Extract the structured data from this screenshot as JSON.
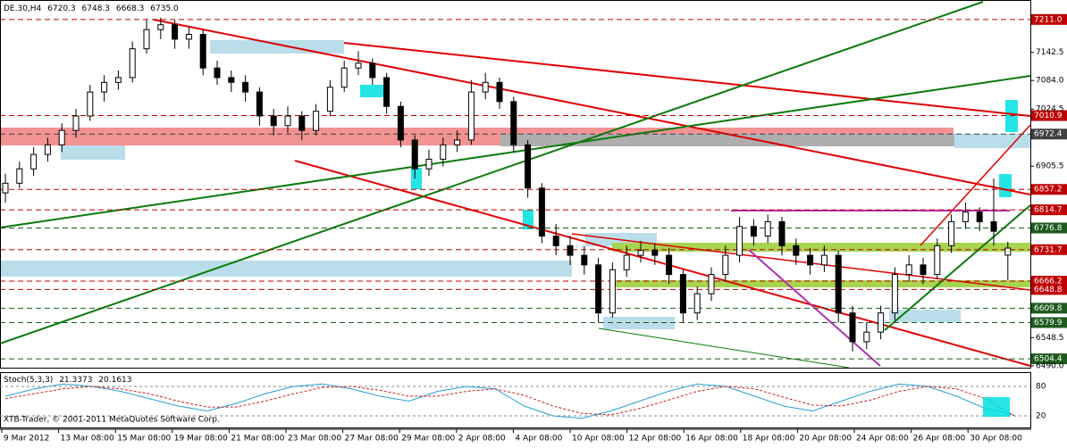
{
  "chart_data": {
    "type": "candlestick",
    "symbol": "DE.30,H4",
    "last_bar_labels": [
      "6720.3",
      "6748.3",
      "6668.3",
      "6735.0"
    ],
    "copyright": "XTB-Trader, © 2001-2011 MetaQuotes Software Corp.",
    "ylim": [
      6486,
      7246
    ],
    "yticks": [
      7142.5,
      {
        "value": 7084,
        "label": "7084.0"
      },
      7024.5,
      6905.5,
      6548.5,
      {
        "value": 6490,
        "label": "6490.0"
      }
    ],
    "x_labels": [
      "9 Mar 2012",
      "13 Mar 08:00",
      "15 Mar 08:00",
      "19 Mar 08:00",
      "21 Mar 08:00",
      "23 Mar 08:00",
      "27 Mar 08:00",
      "29 Mar 08:00",
      "2 Apr 08:00",
      "4 Apr 08:00",
      "10 Apr 08:00",
      "12 Apr 08:00",
      "16 Apr 08:00",
      "18 Apr 08:00",
      "20 Apr 08:00",
      "24 Apr 08:00",
      "26 Apr 08:00",
      "30 Apr 08:00"
    ],
    "ohlc": [
      [
        6850,
        6890,
        6830,
        6870
      ],
      [
        6870,
        6915,
        6860,
        6900
      ],
      [
        6900,
        6945,
        6885,
        6930
      ],
      [
        6930,
        6965,
        6915,
        6950
      ],
      [
        6950,
        6995,
        6935,
        6980
      ],
      [
        6980,
        7025,
        6965,
        7010
      ],
      [
        7010,
        7075,
        7000,
        7060
      ],
      [
        7060,
        7095,
        7040,
        7080
      ],
      [
        7080,
        7105,
        7065,
        7090
      ],
      [
        7090,
        7165,
        7080,
        7150
      ],
      [
        7150,
        7210,
        7140,
        7190
      ],
      [
        7190,
        7215,
        7170,
        7200
      ],
      [
        7200,
        7210,
        7150,
        7170
      ],
      [
        7170,
        7195,
        7150,
        7180
      ],
      [
        7180,
        7190,
        7095,
        7110
      ],
      [
        7110,
        7125,
        7075,
        7090
      ],
      [
        7090,
        7105,
        7060,
        7080
      ],
      [
        7080,
        7095,
        7040,
        7060
      ],
      [
        7060,
        7070,
        6990,
        7010
      ],
      [
        7010,
        7025,
        6970,
        6990
      ],
      [
        6990,
        7030,
        6975,
        7010
      ],
      [
        7010,
        7020,
        6960,
        6980
      ],
      [
        6980,
        7035,
        6970,
        7020
      ],
      [
        7020,
        7085,
        7010,
        7070
      ],
      [
        7070,
        7125,
        7060,
        7110
      ],
      [
        7110,
        7145,
        7095,
        7120
      ],
      [
        7120,
        7130,
        7075,
        7090
      ],
      [
        7090,
        7100,
        7015,
        7030
      ],
      [
        7030,
        7040,
        6945,
        6960
      ],
      [
        6960,
        6970,
        6880,
        6900
      ],
      [
        6900,
        6940,
        6885,
        6920
      ],
      [
        6920,
        6965,
        6905,
        6950
      ],
      [
        6950,
        6980,
        6935,
        6960
      ],
      [
        6960,
        7085,
        6950,
        7060
      ],
      [
        7060,
        7100,
        7045,
        7080
      ],
      [
        7080,
        7090,
        7025,
        7040
      ],
      [
        7040,
        7050,
        6935,
        6950
      ],
      [
        6950,
        6960,
        6840,
        6860
      ],
      [
        6860,
        6870,
        6745,
        6760
      ],
      [
        6760,
        6785,
        6720,
        6740
      ],
      [
        6740,
        6760,
        6700,
        6720
      ],
      [
        6720,
        6740,
        6680,
        6700
      ],
      [
        6700,
        6715,
        6580,
        6600
      ],
      [
        6600,
        6705,
        6590,
        6690
      ],
      [
        6690,
        6740,
        6675,
        6720
      ],
      [
        6720,
        6750,
        6705,
        6730
      ],
      [
        6730,
        6745,
        6700,
        6720
      ],
      [
        6720,
        6735,
        6660,
        6680
      ],
      [
        6680,
        6690,
        6580,
        6600
      ],
      [
        6600,
        6655,
        6585,
        6640
      ],
      [
        6640,
        6695,
        6625,
        6680
      ],
      [
        6680,
        6740,
        6665,
        6720
      ],
      [
        6720,
        6800,
        6705,
        6780
      ],
      [
        6780,
        6795,
        6740,
        6760
      ],
      [
        6760,
        6805,
        6745,
        6790
      ],
      [
        6790,
        6800,
        6720,
        6740
      ],
      [
        6740,
        6755,
        6700,
        6720
      ],
      [
        6720,
        6735,
        6680,
        6700
      ],
      [
        6700,
        6740,
        6685,
        6720
      ],
      [
        6720,
        6730,
        6580,
        6600
      ],
      [
        6600,
        6615,
        6520,
        6540
      ],
      [
        6540,
        6580,
        6525,
        6560
      ],
      [
        6560,
        6615,
        6545,
        6600
      ],
      [
        6600,
        6695,
        6585,
        6680
      ],
      [
        6680,
        6720,
        6665,
        6700
      ],
      [
        6700,
        6715,
        6660,
        6680
      ],
      [
        6680,
        6755,
        6670,
        6740
      ],
      [
        6740,
        6805,
        6725,
        6790
      ],
      [
        6790,
        6830,
        6775,
        6810
      ],
      [
        6810,
        6820,
        6770,
        6790
      ],
      [
        6790,
        6880,
        6740,
        6770
      ],
      [
        6720.3,
        6748.3,
        6668.3,
        6735.0
      ]
    ],
    "levels": [
      {
        "value": 7211.0,
        "label": "7211.0",
        "color": "#c00000"
      },
      {
        "value": 7010.9,
        "label": "7010.9",
        "color": "#c00000"
      },
      {
        "value": 6972.4,
        "label": "6972.4",
        "color": "#404040"
      },
      {
        "value": 6857.2,
        "label": "6857.2",
        "color": "#c00000"
      },
      {
        "value": 6814.7,
        "label": "6814.7",
        "color": "#c00000"
      },
      {
        "value": 6776.8,
        "label": "6776.8",
        "color": "#1e5a1e"
      },
      {
        "value": 6731.7,
        "label": "6731.7",
        "color": "#c00000"
      },
      {
        "value": 6666.2,
        "label": "6666.2",
        "color": "#c00000"
      },
      {
        "value": 6648.8,
        "label": "6648.8",
        "color": "#c00000"
      },
      {
        "value": 6609.8,
        "label": "6609.8",
        "color": "#1e5a1e"
      },
      {
        "value": 6579.9,
        "label": "6579.9",
        "color": "#1e5a1e"
      },
      {
        "value": 6504.4,
        "label": "6504.4",
        "color": "#1e5a1e"
      }
    ],
    "stoch": {
      "name": "Stoch(5,3,3)",
      "ylim": [
        0,
        100
      ],
      "yticks": [
        80,
        20
      ],
      "series": [
        {
          "name": "main",
          "color": "#2a9fd6",
          "values": [
            60,
            75,
            85,
            80,
            70,
            55,
            40,
            30,
            45,
            65,
            80,
            85,
            75,
            60,
            50,
            70,
            80,
            75,
            40,
            20,
            15,
            30,
            50,
            70,
            85,
            80,
            60,
            40,
            30,
            50,
            70,
            85,
            80,
            60,
            35,
            21.3373
          ]
        },
        {
          "name": "signal",
          "color": "#d02020",
          "values": [
            55,
            65,
            75,
            80,
            75,
            65,
            50,
            38,
            38,
            50,
            65,
            78,
            80,
            72,
            60,
            60,
            70,
            75,
            62,
            40,
            25,
            22,
            35,
            52,
            70,
            80,
            75,
            58,
            42,
            40,
            52,
            70,
            80,
            75,
            55,
            20.1613
          ]
        }
      ]
    }
  }
}
